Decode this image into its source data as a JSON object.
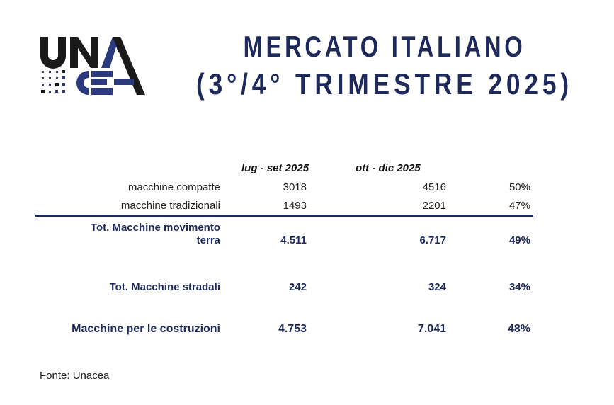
{
  "logo": {
    "text": "UNACEA",
    "colors": {
      "dark": "#1a1a1a",
      "blue": "#2a3a7c"
    }
  },
  "title": {
    "line1": "MERCATO ITALIANO",
    "line2": "(3°/4° TRIMESTRE 2025)"
  },
  "table": {
    "headers": [
      "lug - set 2025",
      "ott - dic 2025"
    ],
    "rows": [
      {
        "label": "macchine compatte",
        "v1": "3018",
        "v2": "4516",
        "pct": "50%"
      },
      {
        "label": "macchine tradizionali",
        "v1": "1493",
        "v2": "2201",
        "pct": "47%"
      },
      {
        "label_line1": "Tot. Macchine movimento",
        "label_line2": "terra",
        "v1": "4.511",
        "v2": "6.717",
        "pct": "49%"
      },
      {
        "label": "Tot. Macchine stradali",
        "v1": "242",
        "v2": "324",
        "pct": "34%"
      },
      {
        "label": "Macchine per le costruzioni",
        "v1": "4.753",
        "v2": "7.041",
        "pct": "48%"
      }
    ]
  },
  "source": "Fonte: Unacea",
  "colors": {
    "navy": "#1f2a5c"
  }
}
